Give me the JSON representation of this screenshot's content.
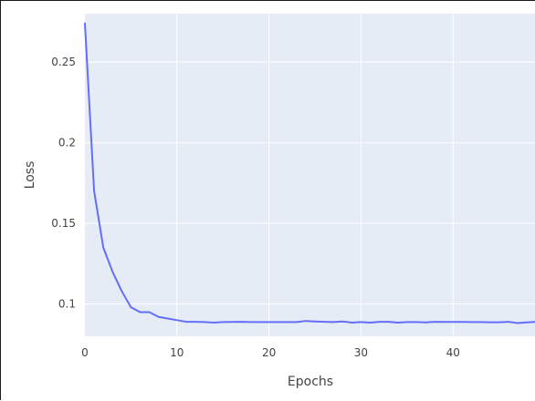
{
  "chart_data": {
    "type": "line",
    "xlabel": "Epochs",
    "ylabel": "Loss",
    "xlim": [
      0,
      49
    ],
    "ylim": [
      0.08,
      0.28
    ],
    "x_ticks": [
      0,
      10,
      20,
      30,
      40
    ],
    "y_ticks": [
      0.1,
      0.15,
      0.2,
      0.25
    ],
    "x_tick_labels": [
      "0",
      "10",
      "20",
      "30",
      "40"
    ],
    "y_tick_labels": [
      "0.1",
      "0.15",
      "0.2",
      "0.25"
    ],
    "grid": true,
    "colors": {
      "plot_background": "#e5ecf6",
      "grid": "#ffffff",
      "line": "#636efa"
    },
    "series": [
      {
        "x": [
          0,
          1,
          2,
          3,
          4,
          5,
          6,
          7,
          8,
          9,
          10,
          11,
          12,
          13,
          14,
          15,
          16,
          17,
          18,
          19,
          20,
          21,
          22,
          23,
          24,
          25,
          26,
          27,
          28,
          29,
          30,
          31,
          32,
          33,
          34,
          35,
          36,
          37,
          38,
          39,
          40,
          41,
          42,
          43,
          44,
          45,
          46,
          47,
          48,
          49
        ],
        "values": [
          0.274,
          0.17,
          0.135,
          0.12,
          0.108,
          0.098,
          0.095,
          0.095,
          0.092,
          0.091,
          0.09,
          0.089,
          0.089,
          0.0888,
          0.0885,
          0.0888,
          0.0889,
          0.089,
          0.0888,
          0.0888,
          0.0888,
          0.0888,
          0.0888,
          0.0888,
          0.0895,
          0.0892,
          0.089,
          0.0888,
          0.0892,
          0.0885,
          0.0888,
          0.0885,
          0.089,
          0.089,
          0.0885,
          0.0888,
          0.0888,
          0.0886,
          0.089,
          0.0889,
          0.0889,
          0.0889,
          0.0888,
          0.0888,
          0.0887,
          0.0887,
          0.089,
          0.0882,
          0.0886,
          0.089
        ]
      }
    ]
  }
}
